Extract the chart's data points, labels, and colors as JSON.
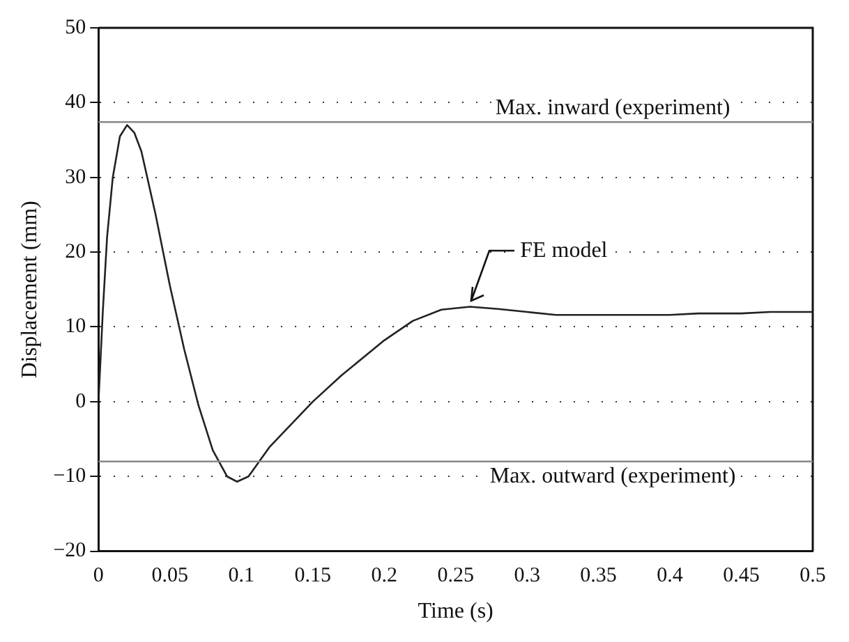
{
  "chart_data": {
    "type": "line",
    "xlabel": "Time (s)",
    "ylabel": "Displacement (mm)",
    "x": [
      0,
      0.003,
      0.006,
      0.01,
      0.015,
      0.02,
      0.025,
      0.03,
      0.04,
      0.05,
      0.06,
      0.07,
      0.08,
      0.09,
      0.097,
      0.105,
      0.12,
      0.15,
      0.17,
      0.2,
      0.22,
      0.24,
      0.26,
      0.28,
      0.3,
      0.32,
      0.35,
      0.4,
      0.42,
      0.45,
      0.47,
      0.5
    ],
    "series": [
      {
        "color": "#222222",
        "values": [
          0,
          12,
          22,
          30,
          35.5,
          37,
          36,
          33.5,
          25,
          15.5,
          7,
          -0.5,
          -6.5,
          -10,
          -10.7,
          -10,
          -6,
          0,
          3.5,
          8.2,
          10.8,
          12.3,
          12.7,
          12.4,
          12,
          11.6,
          11.6,
          11.6,
          11.8,
          11.8,
          12,
          12
        ]
      }
    ],
    "xlim": [
      0,
      0.5
    ],
    "xticks": [
      0,
      0.05,
      0.1,
      0.15,
      0.2,
      0.25,
      0.3,
      0.35,
      0.4,
      0.45,
      0.5
    ],
    "ylim": [
      -20,
      50
    ],
    "yticks": [
      -20,
      -10,
      0,
      10,
      20,
      30,
      40,
      50
    ],
    "grid": "y",
    "legend": false,
    "marker": "none",
    "line_style": "solid",
    "ref_lines": [
      {
        "axis": "y",
        "value": 37.4,
        "label": "Max. inward (experiment)",
        "color": "#888888"
      },
      {
        "axis": "y",
        "value": -8,
        "label": "Max. outward (experiment)",
        "color": "#888888"
      }
    ],
    "annotations": [
      {
        "text": "FE model",
        "x": 0.26,
        "y": 12.7
      }
    ]
  }
}
